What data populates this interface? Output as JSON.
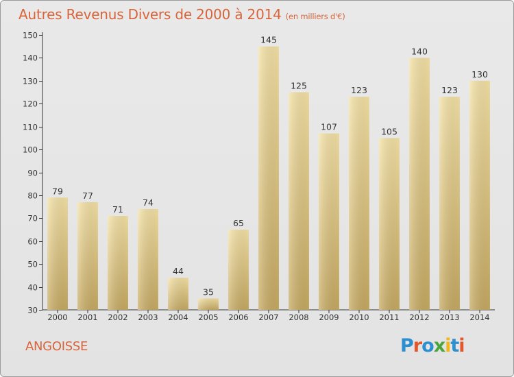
{
  "title": "Autres Revenus Divers de 2000 à 2014",
  "subtitle": "(en milliers d'€)",
  "commune": "ANGOISSE",
  "logo_text": "Proxiti",
  "colors": {
    "accent": "#d8643a",
    "bar_light": "#f6e3a6",
    "bar_dark": "#c8ab62",
    "axis": "#333333",
    "logo": [
      "#2c8fd0",
      "#e3572a",
      "#2c8fd0",
      "#4aa63a",
      "#f0b61c",
      "#2c8fd0",
      "#e3572a"
    ]
  },
  "chart_data": {
    "type": "bar",
    "categories": [
      "2000",
      "2001",
      "2002",
      "2003",
      "2004",
      "2005",
      "2006",
      "2007",
      "2008",
      "2009",
      "2010",
      "2011",
      "2012",
      "2013",
      "2014"
    ],
    "values": [
      79,
      77,
      71,
      74,
      44,
      35,
      65,
      145,
      125,
      107,
      123,
      105,
      140,
      123,
      130
    ],
    "ylim": [
      30,
      150
    ],
    "yticks": [
      30,
      40,
      50,
      60,
      70,
      80,
      90,
      100,
      110,
      120,
      130,
      140,
      150
    ],
    "data_labels": true,
    "grid": false
  }
}
